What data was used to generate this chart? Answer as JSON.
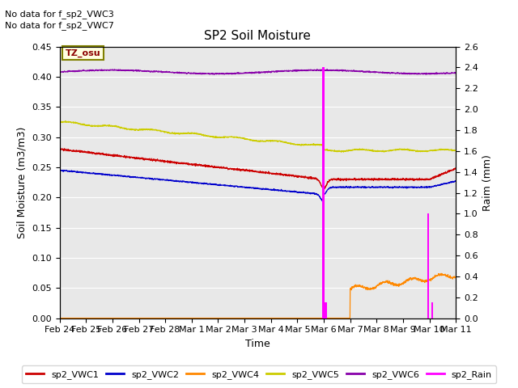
{
  "title": "SP2 Soil Moisture",
  "xlabel": "Time",
  "ylabel_left": "Soil Moisture (m3/m3)",
  "ylabel_right": "Raim (mm)",
  "note_line1": "No data for f_sp2_VWC3",
  "note_line2": "No data for f_sp2_VWC7",
  "tz_label": "TZ_osu",
  "ylim_left": [
    0.0,
    0.45
  ],
  "ylim_right": [
    0.0,
    2.6
  ],
  "yticks_left": [
    0.0,
    0.05,
    0.1,
    0.15,
    0.2,
    0.25,
    0.3,
    0.35,
    0.4,
    0.45
  ],
  "yticks_right": [
    0.0,
    0.2,
    0.4,
    0.6,
    0.8,
    1.0,
    1.2,
    1.4,
    1.6,
    1.8,
    2.0,
    2.2,
    2.4,
    2.6
  ],
  "x_tick_labels": [
    "Feb 24",
    "Feb 25",
    "Feb 26",
    "Feb 27",
    "Feb 28",
    "Mar 1",
    "Mar 2",
    "Mar 3",
    "Mar 4",
    "Mar 5",
    "Mar 6",
    "Mar 7",
    "Mar 8",
    "Mar 9",
    "Mar 10",
    "Mar 11"
  ],
  "background_color": "#e8e8e8",
  "plot_bg": "#e8e8e8",
  "colors": {
    "VWC1": "#cc0000",
    "VWC2": "#0000cc",
    "VWC4": "#ff8800",
    "VWC5": "#cccc00",
    "VWC6": "#8800aa",
    "Rain": "#ff00ff"
  },
  "legend_labels": [
    "sp2_VWC1",
    "sp2_VWC2",
    "sp2_VWC4",
    "sp2_VWC5",
    "sp2_VWC6",
    "sp2_Rain"
  ]
}
